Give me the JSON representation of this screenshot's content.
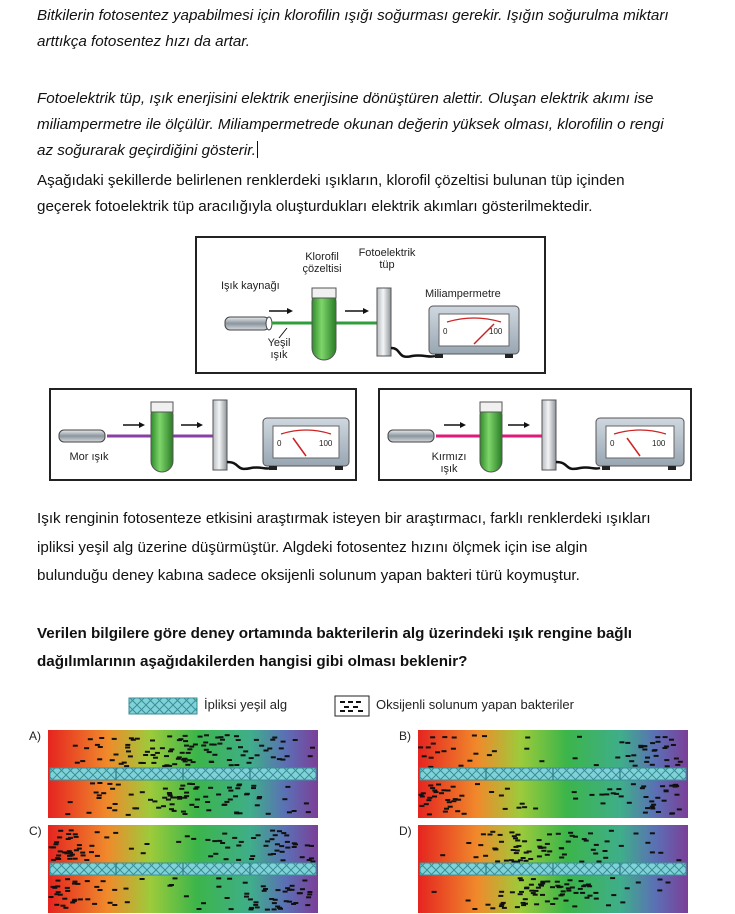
{
  "paragraphs": {
    "p1_line1": "Bitkilerin fotosentez yapabilmesi için klorofilin ışığı soğurması gerekir. Işığın soğurulma miktarı",
    "p1_line2": "arttıkça fotosentez hızı da artar.",
    "p2_line1": "Fotoelektrik tüp, ışık enerjisini elektrik enerjisine dönüştüren alettir. Oluşan elektrik akımı ise",
    "p2_line2": "miliampermetre ile ölçülür. Miliampermetrede okunan değerin yüksek olması, klorofilin o rengi",
    "p2_line3": "az soğurarak geçirdiğini gösterir.",
    "p3_line1": "Aşağıdaki şekillerde belirlenen renklerdeki ışıkların, klorofil çözeltisi bulunan tüp içinden",
    "p3_line2": "geçerek fotoelektrik tüp aracılığıyla oluşturdukları elektrik akımları gösterilmektedir.",
    "p4_line1": "Işık renginin fotosenteze etkisini araştırmak isteyen bir araştırmacı, farklı renklerdeki ışıkları",
    "p4_line2": "ipliksi yeşil alg üzerine düşürmüştür. Algdeki fotosentez hızını ölçmek için ise algin",
    "p4_line3": "bulunduğu deney kabına sadece oksijenli solunum yapan bakteri türü koymuştur."
  },
  "question": {
    "line1": "Verilen bilgilere göre deney ortamında bakterilerin alg üzerindeki ışık rengine bağlı",
    "line2": "dağılımlarının aşağıdakilerden hangisi gibi olması beklenir?"
  },
  "setup_figure": {
    "light_source": "Işık kaynağı",
    "chlorophyll": "Klorofil çözeltisi",
    "phototube": "Fotoelektrik tüp",
    "ammeter": "Miliampermetre",
    "scale_min": "0",
    "scale_max": "100",
    "panels": [
      {
        "light": "Yeşil ışık",
        "color": "#2e9e3a",
        "needle": 0.75
      },
      {
        "light": "Mor ışık",
        "color": "#8a3fa8",
        "needle": 0.3
      },
      {
        "light": "Kırmızı ışık",
        "color": "#e0197a",
        "needle": 0.3
      }
    ]
  },
  "legend": {
    "alga": "İpliksi yeşil alg",
    "bacteria": "Oksijenli solunum yapan bakteriler"
  },
  "options": [
    {
      "label": "A)",
      "pattern": "dense-at-green"
    },
    {
      "label": "B)",
      "pattern": "dense-at-ends"
    },
    {
      "label": "C)",
      "pattern": "dense-at-ends-strong"
    },
    {
      "label": "D)",
      "pattern": "dense-at-middle"
    }
  ],
  "colors": {
    "spectrum_red": "#e52420",
    "spectrum_green": "#3cb54a",
    "spectrum_violet": "#7b3f98",
    "alga": "#7fd2d8"
  }
}
